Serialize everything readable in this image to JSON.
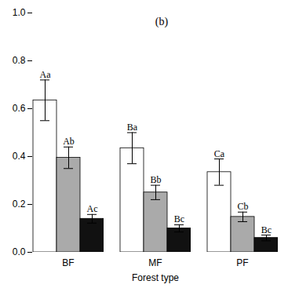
{
  "chart_data": {
    "type": "bar",
    "title": "(b)",
    "xlabel": "Forest type",
    "categories": [
      "BF",
      "MF",
      "PF"
    ],
    "series": [
      {
        "color": "white",
        "values": [
          0.635,
          0.435,
          0.335
        ],
        "errors": [
          0.085,
          0.065,
          0.055
        ],
        "significance_labels": [
          "Aa",
          "Ba",
          "Ca"
        ]
      },
      {
        "color": "#aaaaaa",
        "values": [
          0.395,
          0.25,
          0.148
        ],
        "errors": [
          0.045,
          0.03,
          0.02
        ],
        "significance_labels": [
          "Ab",
          "Bb",
          "Cb"
        ]
      },
      {
        "color": "#111111",
        "values": [
          0.14,
          0.1,
          0.06
        ],
        "errors": [
          0.018,
          0.015,
          0.012
        ],
        "significance_labels": [
          "Ac",
          "Bc",
          "Bc"
        ]
      }
    ],
    "ylim": [
      0,
      1
    ],
    "yticks": [
      {
        "value": 0,
        "label": "0.0"
      },
      0.2,
      0.4,
      0.6,
      0.8,
      {
        "value": 1,
        "label": "1.0"
      }
    ]
  }
}
